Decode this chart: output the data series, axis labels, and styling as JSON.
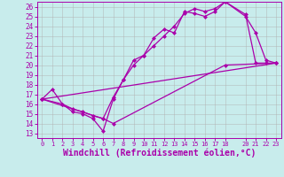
{
  "xlabel": "Windchill (Refroidissement éolien,°C)",
  "bg_color": "#c8ecec",
  "line_color": "#aa00aa",
  "grid_color": "#b0b0b0",
  "xlim": [
    -0.5,
    23.5
  ],
  "ylim": [
    12.5,
    26.5
  ],
  "xticks": [
    0,
    1,
    2,
    3,
    4,
    5,
    6,
    7,
    8,
    9,
    10,
    11,
    12,
    13,
    14,
    15,
    16,
    17,
    18,
    20,
    21,
    22,
    23
  ],
  "yticks": [
    13,
    14,
    15,
    16,
    17,
    18,
    19,
    20,
    21,
    22,
    23,
    24,
    25,
    26
  ],
  "curve1": {
    "x": [
      0,
      1,
      2,
      3,
      4,
      5,
      6,
      7,
      8,
      9,
      10,
      11,
      12,
      13,
      14,
      15,
      16,
      17,
      18,
      20,
      21,
      22,
      23
    ],
    "y": [
      16.5,
      17.5,
      16.0,
      15.2,
      15.0,
      14.5,
      13.2,
      16.5,
      18.5,
      20.5,
      21.0,
      22.8,
      23.7,
      23.3,
      25.5,
      25.3,
      25.0,
      25.5,
      26.5,
      25.0,
      23.3,
      20.5,
      20.2
    ]
  },
  "curve2": {
    "x": [
      0,
      2,
      3,
      4,
      5,
      6,
      7,
      8,
      9,
      10,
      11,
      12,
      13,
      14,
      15,
      16,
      17,
      18,
      20,
      21,
      22,
      23
    ],
    "y": [
      16.5,
      16.0,
      15.5,
      15.2,
      14.8,
      14.5,
      16.7,
      18.5,
      20.0,
      21.0,
      22.0,
      23.0,
      24.0,
      25.3,
      25.8,
      25.5,
      25.8,
      26.5,
      25.2,
      20.2,
      20.2,
      20.2
    ]
  },
  "curve3": {
    "x": [
      0,
      6,
      7,
      18,
      23
    ],
    "y": [
      16.5,
      14.5,
      14.0,
      20.0,
      20.2
    ]
  },
  "curve4": {
    "x": [
      0,
      23
    ],
    "y": [
      16.5,
      20.2
    ]
  },
  "markersize": 2.5,
  "linewidth": 0.9
}
